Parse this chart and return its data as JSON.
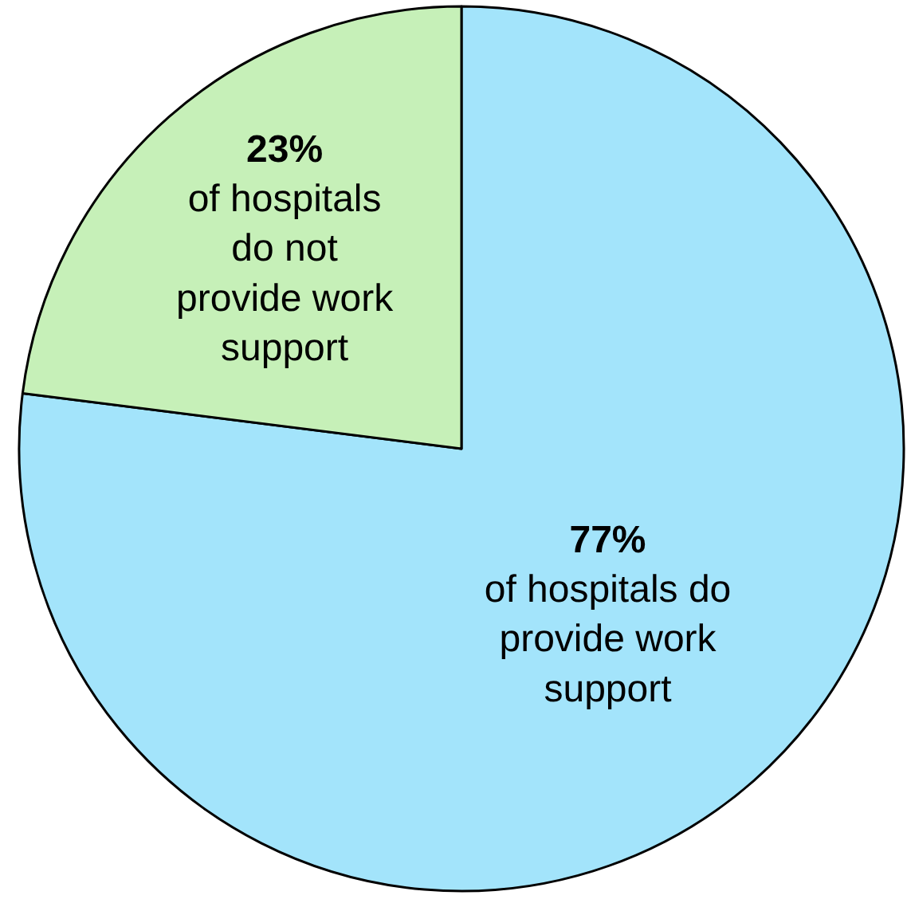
{
  "chart_data": {
    "type": "pie",
    "categories": [
      "of hospitals do\nprovide work\nsupport",
      "of hospitals\ndo not\nprovide work\nsupport"
    ],
    "values": [
      77,
      23
    ],
    "value_labels": [
      "77%",
      "23%"
    ],
    "colors": [
      "#a3e4fb",
      "#c6f0b8"
    ],
    "legend": false
  }
}
